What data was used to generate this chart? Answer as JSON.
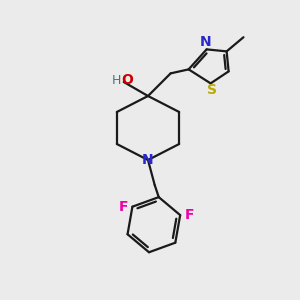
{
  "background_color": "#ebebeb",
  "bond_color": "#1a1a1a",
  "atom_colors": {
    "N": "#2828cc",
    "O": "#cc0000",
    "H": "#3a7a7a",
    "S": "#bbaa00",
    "F": "#ee00aa",
    "C": "#1a1a1a"
  },
  "figsize": [
    3.0,
    3.0
  ],
  "dpi": 100
}
